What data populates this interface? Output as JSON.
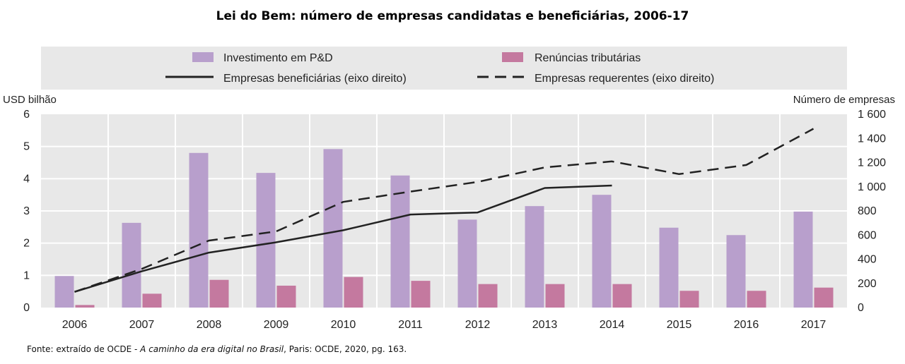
{
  "chart_data": {
    "type": "bar",
    "title": "Lei do Bem: número de empresas candidatas e beneficiárias, 2006-17",
    "categories": [
      "2006",
      "2007",
      "2008",
      "2009",
      "2010",
      "2011",
      "2012",
      "2013",
      "2014",
      "2015",
      "2016",
      "2017"
    ],
    "ylabel_left": "USD bilhão",
    "ylabel_right": "Número de empresas",
    "ylim_left": [
      0,
      6
    ],
    "ylim_right": [
      0,
      1600
    ],
    "yticks_left": [
      "0",
      "1",
      "2",
      "3",
      "4",
      "5",
      "6"
    ],
    "yticks_right": [
      "0",
      "200",
      "400",
      "600",
      "800",
      "1 000",
      "1 200",
      "1 400",
      "1 600"
    ],
    "grid": true,
    "legend_position": "top",
    "series": [
      {
        "name": "Investimento em P&D",
        "kind": "bar",
        "axis": "left",
        "color": "#b89fcc",
        "values": [
          0.98,
          2.63,
          4.8,
          4.18,
          4.92,
          4.1,
          2.73,
          3.15,
          3.5,
          2.48,
          2.25,
          2.98
        ]
      },
      {
        "name": "Renúncias tributárias",
        "kind": "bar",
        "axis": "left",
        "color": "#c4799f",
        "values": [
          0.08,
          0.43,
          0.86,
          0.68,
          0.95,
          0.83,
          0.73,
          0.73,
          0.73,
          0.52,
          0.52,
          0.62
        ]
      },
      {
        "name": "Empresas beneficiárias (eixo direito)",
        "kind": "line",
        "axis": "right",
        "style": "solid",
        "color": "#222222",
        "values": [
          130,
          300,
          455,
          540,
          640,
          770,
          787,
          990,
          1010,
          null,
          null,
          null
        ]
      },
      {
        "name": "Empresas requerentes (eixo direito)",
        "kind": "line",
        "axis": "right",
        "style": "dashed",
        "color": "#222222",
        "values": [
          130,
          320,
          555,
          630,
          875,
          960,
          1040,
          1160,
          1210,
          1105,
          1180,
          1480
        ]
      }
    ]
  },
  "source": {
    "prefix": "Fonte: extraído de OCDE - ",
    "italic": "A caminho da era digital no Brasil",
    "suffix": ", Paris: OCDE, 2020,  pg. 163."
  }
}
